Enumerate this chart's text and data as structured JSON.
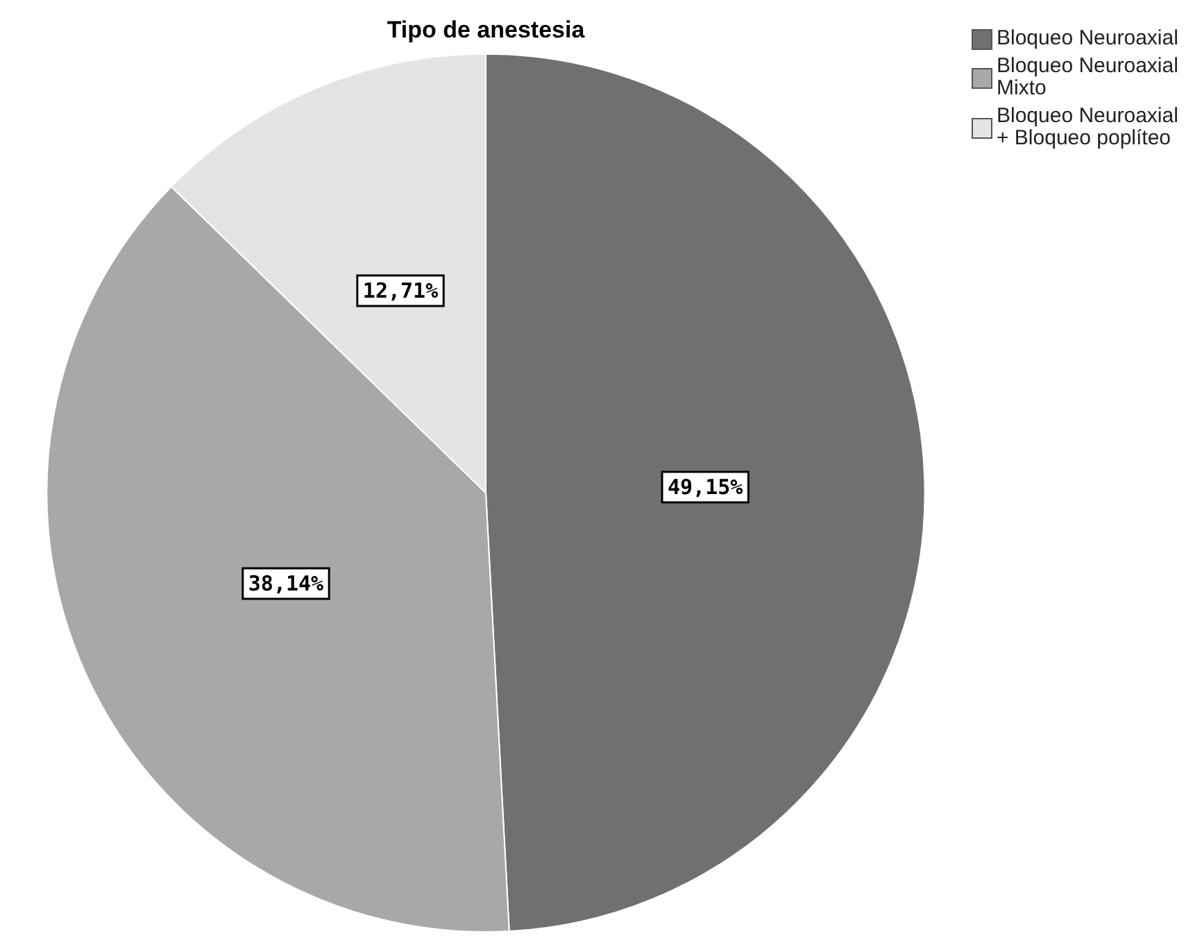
{
  "chart_data": {
    "type": "pie",
    "title": "Tipo de anestesia",
    "categories": [
      "Bloqueo Neuroaxial",
      "Bloqueo Neuroaxial Mixto",
      "Bloqueo Neuroaxial + Bloqueo poplíteo"
    ],
    "values": [
      49.15,
      38.14,
      12.71
    ],
    "colors": [
      "#707070",
      "#a8a8a8",
      "#e4e4e4"
    ],
    "value_labels": [
      "49,15%",
      "38,14%",
      "12,71%"
    ],
    "legend": "top right"
  }
}
